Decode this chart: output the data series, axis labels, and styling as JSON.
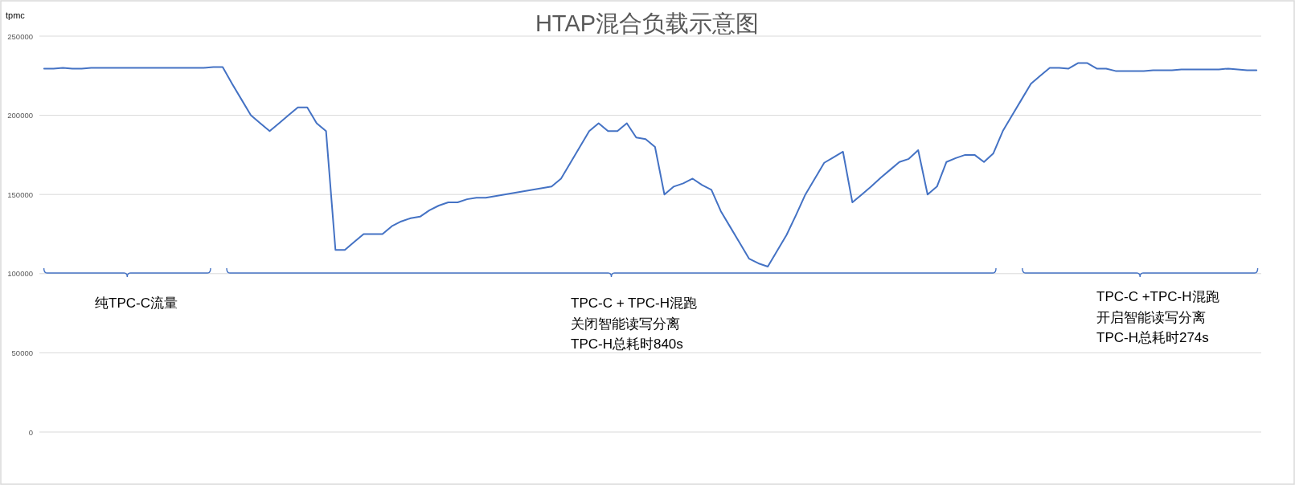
{
  "chart_data": {
    "type": "line",
    "title": "HTAP混合负载示意图",
    "ylabel": "tpmc",
    "categories": [
      null,
      null,
      null,
      null,
      null,
      null,
      null,
      null,
      null,
      null,
      null,
      null,
      null,
      null,
      null,
      null,
      null,
      null,
      null,
      null,
      null,
      null,
      null,
      null,
      null,
      null,
      null,
      null,
      null,
      null,
      null,
      null,
      null,
      null,
      null,
      null,
      null,
      null,
      null,
      null,
      null,
      null,
      null,
      null,
      null,
      null,
      null,
      null,
      null,
      null,
      null,
      null,
      null,
      null,
      null,
      null,
      null,
      null,
      null,
      null,
      null,
      null,
      null,
      null,
      null,
      null,
      null,
      null,
      null,
      null,
      null,
      null,
      null,
      null,
      null,
      null,
      null,
      null,
      null,
      null,
      null,
      null,
      null,
      null,
      null,
      null,
      null,
      null,
      null,
      null,
      null,
      null,
      null,
      null,
      null,
      null,
      null,
      null,
      null,
      null,
      null,
      null,
      null,
      null,
      null,
      null,
      null,
      null,
      null,
      null,
      null,
      null,
      null,
      null,
      null,
      null,
      null,
      null,
      null,
      null,
      null,
      null,
      null,
      null,
      null,
      null,
      null,
      null,
      null,
      null
    ],
    "series": [
      {
        "color": "#4472c4",
        "values": [
          229500,
          229500,
          230000,
          229500,
          229500,
          230000,
          230000,
          230000,
          230000,
          230000,
          230000,
          230000,
          230000,
          230000,
          230000,
          230000,
          230000,
          230000,
          230500,
          230500,
          220000,
          210000,
          200000,
          195000,
          190000,
          195000,
          200000,
          205000,
          205000,
          195000,
          190000,
          115000,
          115000,
          120000,
          125000,
          125000,
          125000,
          130000,
          133000,
          135000,
          136000,
          140000,
          143000,
          145000,
          145000,
          147000,
          148000,
          148000,
          149000,
          150000,
          151000,
          152000,
          153000,
          154000,
          155000,
          160000,
          170000,
          180000,
          190000,
          195000,
          190000,
          190000,
          195000,
          186000,
          185000,
          180000,
          150000,
          155000,
          157000,
          160000,
          156000,
          153000,
          139500,
          129500,
          119500,
          109500,
          106500,
          104500,
          114500,
          124500,
          137000,
          150000,
          160000,
          170000,
          173500,
          177000,
          145000,
          150000,
          155000,
          160500,
          165500,
          170500,
          172500,
          178000,
          150000,
          155000,
          170500,
          173000,
          175000,
          175000,
          170500,
          176000,
          190000,
          200000,
          210000,
          220000,
          225000,
          230000,
          230000,
          229500,
          233000,
          233000,
          229500,
          229500,
          228000,
          228000,
          228000,
          228000,
          228500,
          228500,
          228500,
          229000,
          229000,
          229000,
          229000,
          229000,
          229500,
          229000,
          228500,
          228500
        ]
      }
    ],
    "ylim": [
      0,
      250000
    ],
    "yticks": [
      0,
      50000,
      100000,
      150000,
      200000,
      250000
    ],
    "grid": "y",
    "tick_labels": "y",
    "annotations": [
      "纯TPC-C流量",
      "TPC-C + TPC-H混跑关闭智能读写分离TPC-H总耗时840s",
      "TPC-C +TPC-H混跑开启智能读写分离TPC-H总耗时274s"
    ]
  }
}
